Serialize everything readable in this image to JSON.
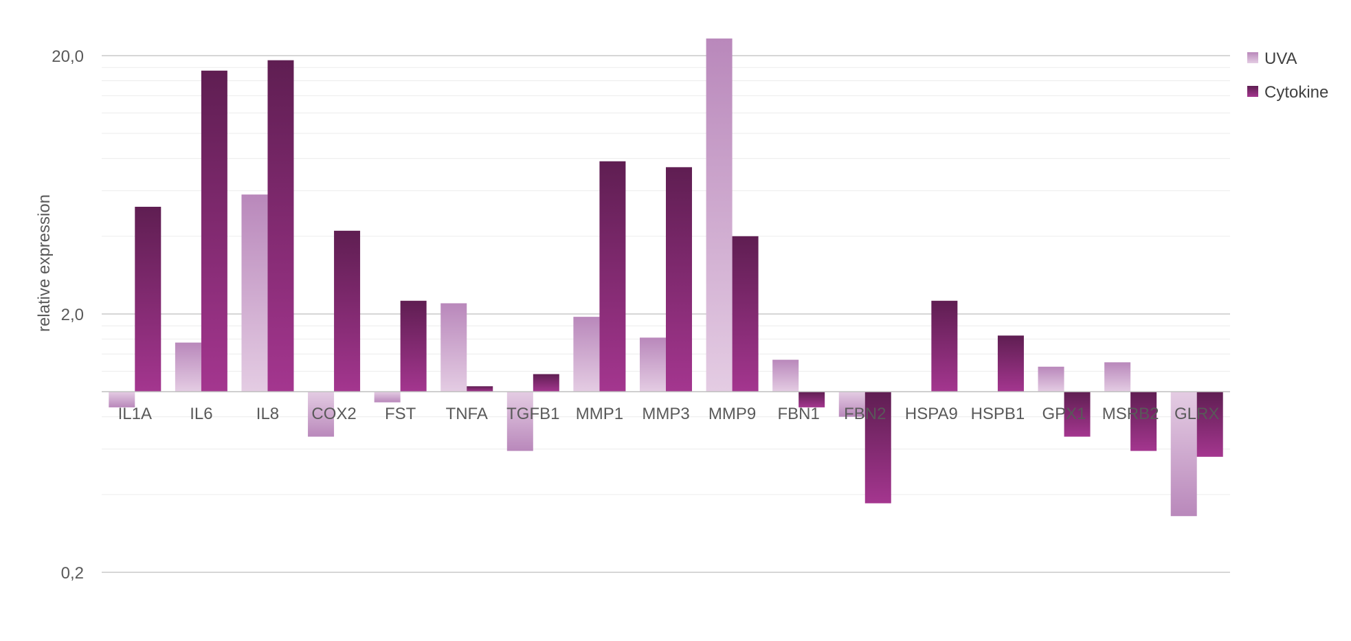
{
  "chart_data": {
    "type": "bar",
    "ylabel": "relative expression",
    "yscale": "log",
    "ylim": [
      0.2,
      25
    ],
    "baseline": 1,
    "yticks": [
      0.2,
      2,
      20
    ],
    "ytick_labels": [
      "0,2",
      "2,0",
      "20,0"
    ],
    "grid": true,
    "legend_position": "right",
    "categories": [
      "IL1A",
      "IL6",
      "IL8",
      "COX2",
      "FST",
      "TNFA",
      "TGFB1",
      "MMP1",
      "MMP3",
      "MMP9",
      "FBN1",
      "FBN2",
      "HSPA9",
      "HSPB1",
      "GPX1",
      "MSRB2",
      "GLRX"
    ],
    "series": [
      {
        "name": "UVA",
        "values": [
          0.87,
          1.55,
          5.8,
          0.67,
          0.91,
          2.2,
          0.59,
          1.95,
          1.62,
          23.3,
          1.33,
          0.8,
          1.0,
          1.0,
          1.25,
          1.3,
          0.33
        ]
      },
      {
        "name": "Cytokine",
        "values": [
          5.2,
          17.5,
          19.2,
          4.2,
          2.25,
          1.05,
          1.17,
          7.8,
          7.4,
          4.0,
          0.87,
          0.37,
          2.25,
          1.65,
          0.67,
          0.59,
          0.56
        ]
      }
    ],
    "colors": {
      "UVA": {
        "top": "#b988bb",
        "bottom": "#e4cce3"
      },
      "Cytokine": {
        "top": "#5f1e52",
        "bottom": "#a4368f"
      }
    }
  }
}
